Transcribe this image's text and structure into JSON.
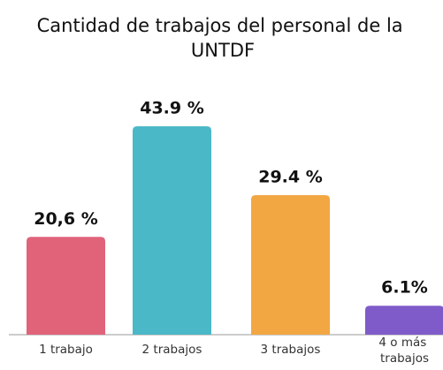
{
  "chart_data": {
    "type": "bar",
    "title": "Cantidad de trabajos del personal de la UNTDF",
    "categories": [
      "1 trabajo",
      "2 trabajos",
      "3 trabajos",
      "4 o más trabajos"
    ],
    "values": [
      20.6,
      43.9,
      29.4,
      6.1
    ],
    "value_labels": [
      "20,6 %",
      "43.9 %",
      "29.4 %",
      "6.1%"
    ],
    "colors": [
      "#e0637a",
      "#4bb8c8",
      "#f2a742",
      "#7e5bc9"
    ]
  }
}
